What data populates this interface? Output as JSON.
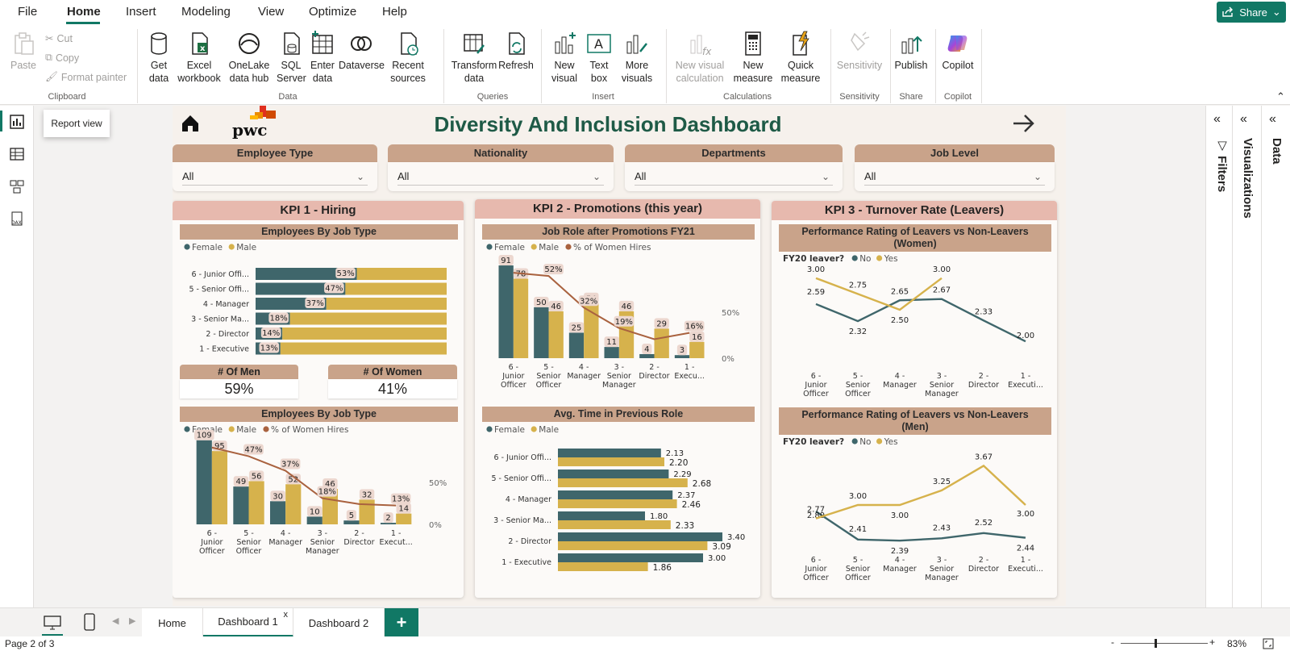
{
  "menu": {
    "items": [
      "File",
      "Home",
      "Insert",
      "Modeling",
      "View",
      "Optimize",
      "Help"
    ],
    "share": "Share"
  },
  "ribbon": {
    "clipboard": {
      "paste": "Paste",
      "cut": "Cut",
      "copy": "Copy",
      "format_painter": "Format painter",
      "label": "Clipboard"
    },
    "data": {
      "get_data": "Get\ndata",
      "excel": "Excel\nworkbook",
      "onelake": "OneLake\ndata hub",
      "sql": "SQL\nServer",
      "enter": "Enter\ndata",
      "dataverse": "Dataverse",
      "recent": "Recent\nsources",
      "label": "Data"
    },
    "queries": {
      "transform": "Transform\ndata",
      "refresh": "Refresh",
      "label": "Queries"
    },
    "insert": {
      "new_visual": "New\nvisual",
      "text_box": "Text\nbox",
      "more_visuals": "More\nvisuals",
      "label": "Insert"
    },
    "calculations": {
      "new_visual_calc": "New visual\ncalculation",
      "new_measure": "New\nmeasure",
      "quick_measure": "Quick\nmeasure",
      "label": "Calculations"
    },
    "sensitivity": {
      "sensitivity": "Sensitivity",
      "label": "Sensitivity"
    },
    "share": {
      "publish": "Publish",
      "label": "Share"
    },
    "copilot": {
      "copilot": "Copilot",
      "label": "Copilot"
    }
  },
  "tooltip": "Report view",
  "panes": {
    "filters": "Filters",
    "visualizations": "Visualizations",
    "data": "Data"
  },
  "tabs": {
    "items": [
      "Home",
      "Dashboard 1",
      "Dashboard 2"
    ],
    "active": "Dashboard 1",
    "close": "x",
    "add": "+"
  },
  "status": {
    "page": "Page 2 of 3",
    "zoom": "83%"
  },
  "report": {
    "title": "Diversity And Inclusion Dashboard",
    "logo": "pwc",
    "slicers": [
      {
        "label": "Employee Type",
        "value": "All"
      },
      {
        "label": "Nationality",
        "value": "All"
      },
      {
        "label": "Departments",
        "value": "All"
      },
      {
        "label": "Job Level",
        "value": "All"
      }
    ],
    "kpi1": {
      "title": "KPI 1 - Hiring",
      "chart1_title": "Employees By Job Type",
      "card_men_label": "# Of Men",
      "card_men_value": "59%",
      "card_women_label": "# Of Women",
      "card_women_value": "41%",
      "chart2_title": "Employees By Job Type"
    },
    "kpi2": {
      "title": "KPI 2 - Promotions (this year)",
      "chart1_title": "Job Role after Promotions FY21",
      "chart2_title": "Avg. Time in Previous Role"
    },
    "kpi3": {
      "title": "KPI 3 - Turnover Rate (Leavers)",
      "chart1_title": "Performance Rating of Leavers vs Non-Leavers\n(Women)",
      "chart2_title": "Performance Rating of Leavers vs Non-Leavers\n(Men)"
    }
  },
  "colors": {
    "female": "#3f666b",
    "male": "#d6b24c",
    "women_hires": "#a9623f",
    "accent": "#117865",
    "title": "#1e5a46"
  },
  "chart_data": [
    {
      "id": "stacked",
      "type": "bar",
      "orientation": "horizontal-stacked-100",
      "legend": [
        "Female",
        "Male"
      ],
      "categories": [
        "6 - Junior Offi...",
        "5 - Senior Offi...",
        "4 - Manager",
        "3 - Senior Ma...",
        "2 - Director",
        "1 - Executive"
      ],
      "female_pct": [
        53,
        47,
        37,
        18,
        14,
        13
      ]
    },
    {
      "id": "hiring",
      "type": "bar",
      "legend": [
        "Female",
        "Male",
        "% of Women Hires"
      ],
      "categories": [
        "6 -\nJunior\nOfficer",
        "5 -\nSenior\nOfficer",
        "4 -\nManager",
        "3 -\nSenior\nManager",
        "2 -\nDirector",
        "1 -\nExecut..."
      ],
      "series": [
        {
          "name": "Female",
          "values": [
            109,
            49,
            30,
            10,
            5,
            2
          ]
        },
        {
          "name": "Male",
          "values": [
            95,
            56,
            52,
            46,
            32,
            14
          ]
        }
      ],
      "line": {
        "name": "% of Women Hires",
        "values": [
          53,
          47,
          37,
          18,
          14,
          13
        ],
        "labels": [
          "",
          "47%",
          "37%",
          "18%",
          "",
          "13%"
        ]
      },
      "y2_ticks": [
        "50%",
        "0%"
      ],
      "ymax": 115
    },
    {
      "id": "promotions",
      "type": "bar",
      "legend": [
        "Female",
        "Male",
        "% of Women Hires"
      ],
      "categories": [
        "6 -\nJunior\nOfficer",
        "5 -\nSenior\nOfficer",
        "4 -\nManager",
        "3 -\nSenior\nManager",
        "2 -\nDirector",
        "1 -\nExecu..."
      ],
      "series": [
        {
          "name": "Female",
          "values": [
            91,
            50,
            25,
            11,
            4,
            3
          ]
        },
        {
          "name": "Male",
          "values": [
            78,
            46,
            54,
            46,
            29,
            16
          ]
        }
      ],
      "line": {
        "name": "% of Women Hires",
        "values": [
          54,
          52,
          32,
          19,
          12,
          16
        ],
        "labels": [
          "",
          "52%",
          "32%",
          "19%",
          "",
          "16%"
        ]
      },
      "y2_ticks": [
        "50%",
        "0%"
      ],
      "ymax": 95
    },
    {
      "id": "avgtime",
      "type": "bar",
      "orientation": "horizontal",
      "legend": [
        "Female",
        "Male"
      ],
      "categories": [
        "6 - Junior Offi...",
        "5 - Senior Offi...",
        "4 - Manager",
        "3 - Senior Ma...",
        "2 - Director",
        "1 - Executive"
      ],
      "series": [
        {
          "name": "Female",
          "values": [
            2.13,
            2.29,
            2.37,
            1.8,
            3.4,
            3.0
          ]
        },
        {
          "name": "Male",
          "values": [
            2.2,
            2.68,
            2.46,
            2.33,
            3.09,
            1.86
          ]
        }
      ],
      "xmax": 3.5
    },
    {
      "id": "leavers_women",
      "type": "line",
      "legend_title": "FY20 leaver?",
      "legend": [
        "No",
        "Yes"
      ],
      "categories": [
        "6 -\nJunior\nOfficer",
        "5 -\nSenior\nOfficer",
        "4 -\nManager",
        "3 -\nSenior\nManager",
        "2 -\nDirector",
        "1 -\nExecuti..."
      ],
      "series": [
        {
          "name": "No",
          "values": [
            2.59,
            2.32,
            2.65,
            2.67,
            2.33,
            2.0
          ]
        },
        {
          "name": "Yes",
          "values": [
            3.0,
            2.75,
            2.5,
            3.0,
            null,
            null
          ]
        }
      ],
      "ylim": [
        1.9,
        3.1
      ]
    },
    {
      "id": "leavers_men",
      "type": "line",
      "legend_title": "FY20 leaver?",
      "legend": [
        "No",
        "Yes"
      ],
      "categories": [
        "6 -\nJunior\nOfficer",
        "5 -\nSenior\nOfficer",
        "4 -\nManager",
        "3 -\nSenior\nManager",
        "2 -\nDirector",
        "1 -\nExecuti..."
      ],
      "series": [
        {
          "name": "No",
          "values": [
            2.89,
            2.41,
            2.39,
            2.43,
            2.52,
            2.44
          ]
        },
        {
          "name": "Yes",
          "values": [
            2.77,
            3.0,
            3.0,
            3.25,
            3.67,
            3.0
          ]
        }
      ],
      "ylim": [
        2.2,
        3.8
      ]
    }
  ]
}
